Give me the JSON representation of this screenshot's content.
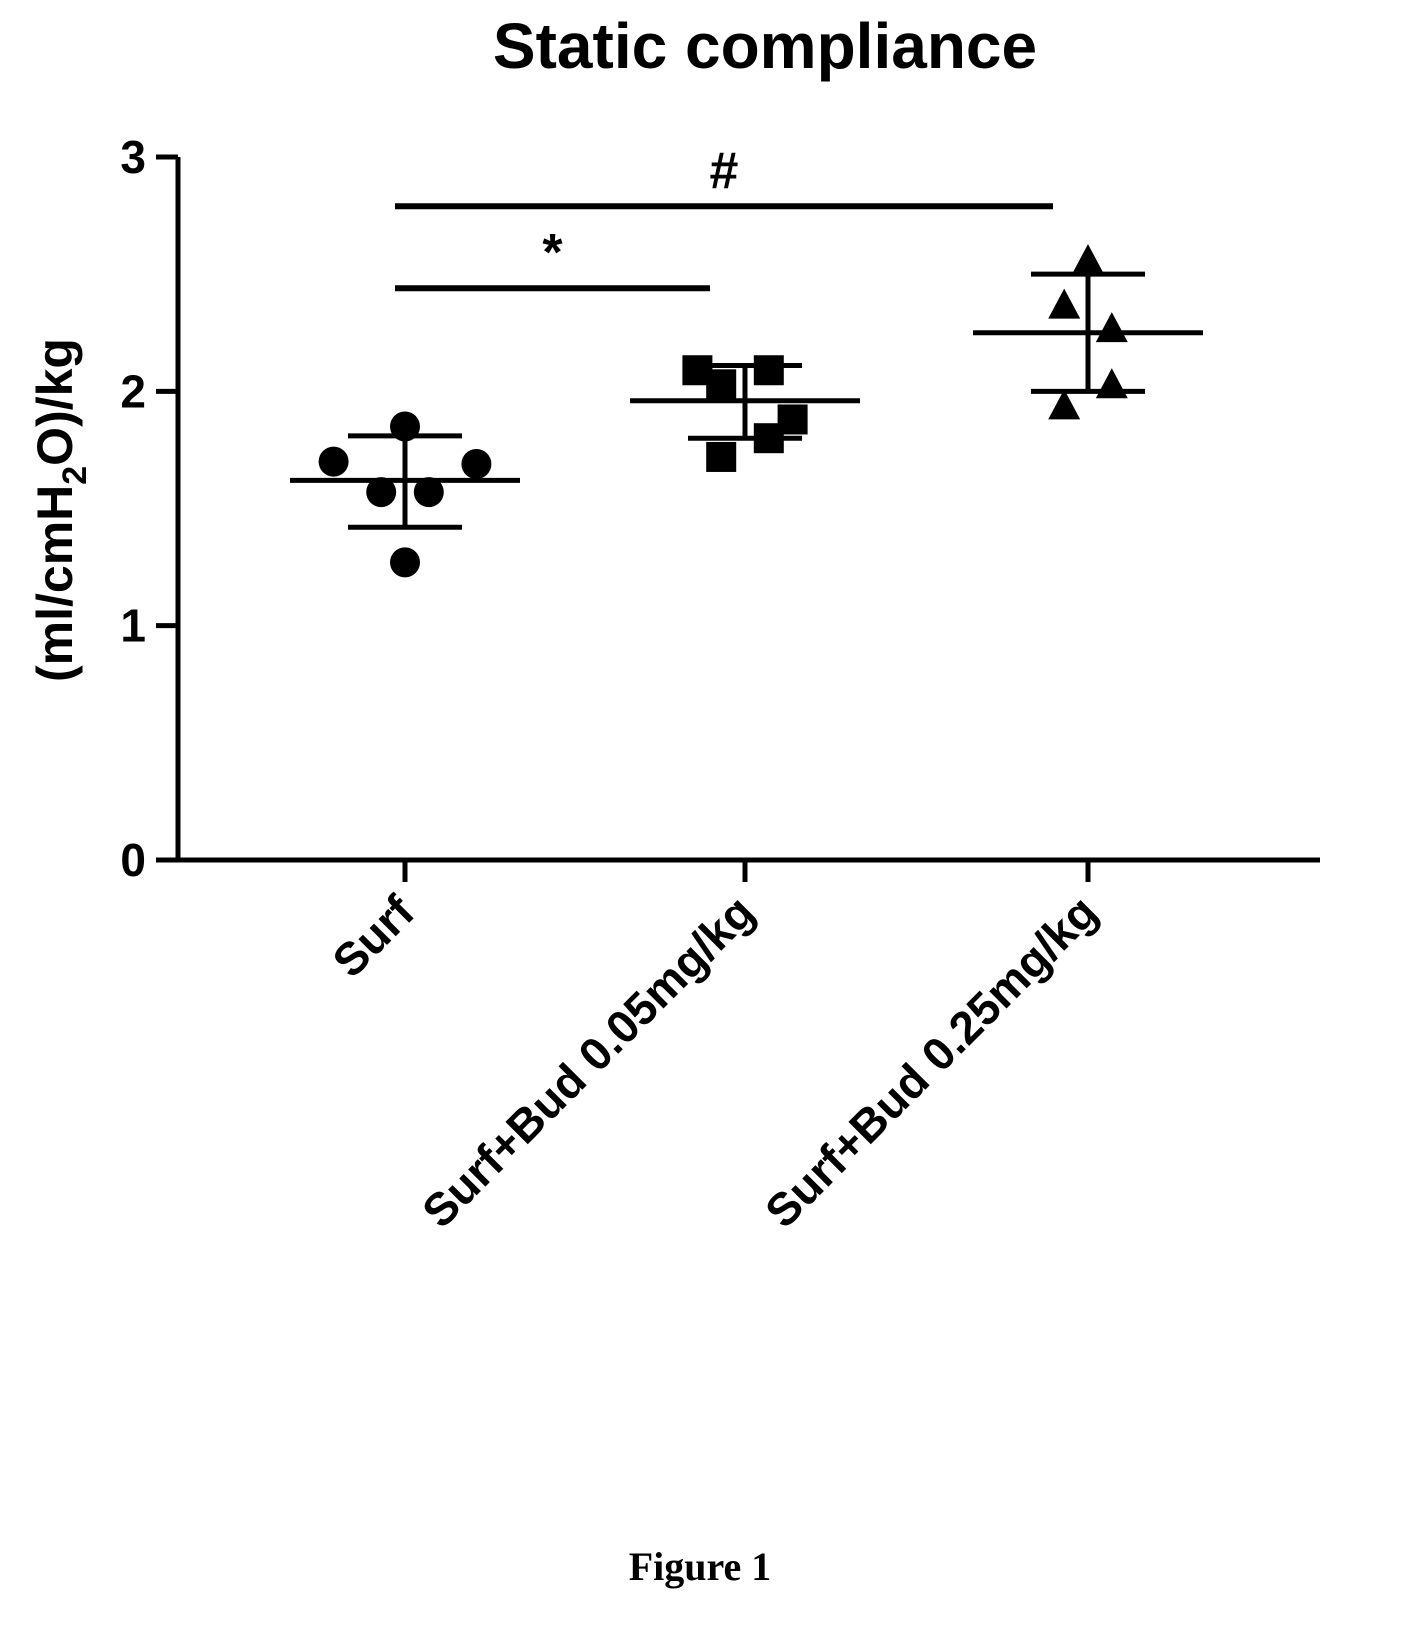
{
  "chart_data": {
    "type": "scatter",
    "title": "Static compliance",
    "ylabel": {
      "pre": "(ml/cmH",
      "sub": "2",
      "post": "O)/kg"
    },
    "xlabel": "",
    "ylim": [
      0,
      3
    ],
    "yticks": [
      0,
      1,
      2,
      3
    ],
    "grid": false,
    "categories": [
      "Surf",
      "Surf+Bud 0.05mg/kg",
      "Surf+Bud 0.25mg/kg"
    ],
    "series": [
      {
        "category": "Surf",
        "marker": "circle",
        "points": [
          {
            "offset": 0.0,
            "value": 1.85
          },
          {
            "offset": -0.21,
            "value": 1.7
          },
          {
            "offset": 0.21,
            "value": 1.69
          },
          {
            "offset": -0.07,
            "value": 1.57
          },
          {
            "offset": 0.07,
            "value": 1.57
          },
          {
            "offset": 0.0,
            "value": 1.27
          }
        ],
        "mean": 1.62,
        "sd_upper": 1.81,
        "sd_lower": 1.42
      },
      {
        "category": "Surf+Bud 0.05mg/kg",
        "marker": "square",
        "points": [
          {
            "offset": -0.14,
            "value": 2.09
          },
          {
            "offset": 0.07,
            "value": 2.09
          },
          {
            "offset": -0.07,
            "value": 2.03
          },
          {
            "offset": 0.14,
            "value": 1.88
          },
          {
            "offset": 0.07,
            "value": 1.8
          },
          {
            "offset": -0.07,
            "value": 1.72
          }
        ],
        "mean": 1.96,
        "sd_upper": 2.11,
        "sd_lower": 1.8
      },
      {
        "category": "Surf+Bud 0.25mg/kg",
        "marker": "triangle",
        "points": [
          {
            "offset": 0.0,
            "value": 2.56
          },
          {
            "offset": -0.07,
            "value": 2.37
          },
          {
            "offset": 0.07,
            "value": 2.27
          },
          {
            "offset": 0.07,
            "value": 2.03
          },
          {
            "offset": -0.07,
            "value": 1.94
          }
        ],
        "mean": 2.25,
        "sd_upper": 2.5,
        "sd_lower": 2.0
      }
    ],
    "annotations": [
      {
        "label": "*",
        "from": 0,
        "to": 1,
        "value": 2.44
      },
      {
        "label": "#",
        "from": 0,
        "to": 2,
        "value": 2.79
      }
    ]
  },
  "figure_caption": "Figure 1"
}
